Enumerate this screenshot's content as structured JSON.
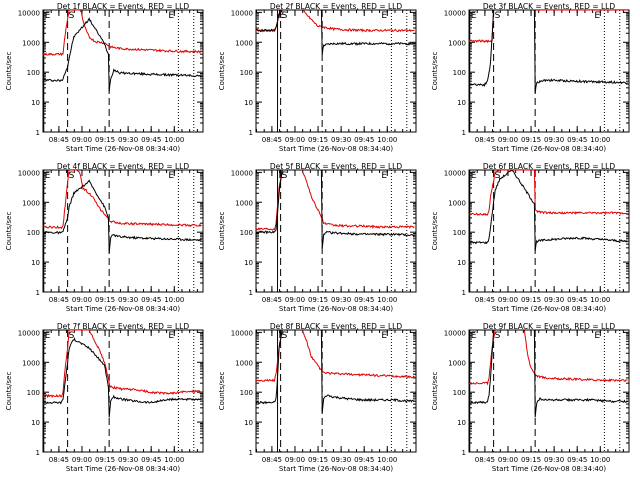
{
  "figure": {
    "ylabel": "Counts/sec",
    "xlabel": "Start Time (26-Nov-08 08:34:40)",
    "x_tick_labels": [
      "08:45",
      "09:00",
      "09:15",
      "09:30",
      "09:45",
      "10:00"
    ],
    "y_tick_labels": [
      "1",
      "10",
      "100",
      "1000",
      "10000"
    ],
    "colors": {
      "events": "#000000",
      "lld": "#e00000",
      "axes": "#000000"
    },
    "interval_labels": {
      "pre": "E",
      "during": "S",
      "post": "E"
    }
  },
  "chart_data": [
    {
      "type": "line",
      "title": "Det 1f BLACK = Events, RED = LLD",
      "x_unit": "minutes after 08:34:40",
      "xlim": [
        0,
        104
      ],
      "ylim": [
        1,
        12000
      ],
      "yscale": "log",
      "markers": {
        "solid": 0.5,
        "dash1": 16,
        "dash2": 43,
        "dot1": 88,
        "dot2": 98
      },
      "interval_labels": [
        "E",
        "S",
        "E"
      ],
      "series": [
        {
          "name": "Events",
          "x": [
            0,
            12,
            13,
            14,
            16,
            17,
            20,
            30,
            40,
            42.5,
            43,
            44,
            46,
            50,
            60,
            70,
            80,
            90,
            100,
            103
          ],
          "y": [
            55,
            52,
            60,
            90,
            150,
            300,
            1500,
            6000,
            900,
            400,
            25,
            60,
            120,
            95,
            90,
            85,
            82,
            80,
            76,
            75
          ]
        },
        {
          "name": "LLD",
          "x": [
            0,
            12,
            13,
            14,
            15,
            16,
            17,
            24,
            25,
            26,
            28,
            30,
            34,
            40,
            43,
            44,
            50,
            60,
            70,
            80,
            90,
            100,
            103
          ],
          "y": [
            400,
            400,
            420,
            1200,
            3000,
            6000,
            12000,
            12000,
            10000,
            5000,
            2500,
            1500,
            1050,
            950,
            750,
            700,
            620,
            580,
            550,
            520,
            500,
            490,
            480
          ]
        }
      ]
    },
    {
      "type": "line",
      "title": "Det 2f BLACK = Events, RED = LLD",
      "x_unit": "minutes after 08:34:40",
      "xlim": [
        0,
        104
      ],
      "ylim": [
        1,
        12000
      ],
      "yscale": "log",
      "markers": {
        "solid": 14,
        "dash1": 16,
        "dash2": 43,
        "dot1": 88,
        "dot2": 98
      },
      "interval_labels": [
        "E",
        "S",
        "E"
      ],
      "series": [
        {
          "name": "Events",
          "x": [
            0,
            12,
            13,
            14,
            15,
            17,
            20,
            30,
            40,
            42.5,
            43,
            44,
            50,
            60,
            70,
            80,
            90,
            100,
            103
          ],
          "y": [
            2500,
            2500,
            3000,
            5000,
            9000,
            12000,
            12000,
            12000,
            12000,
            12000,
            400,
            800,
            900,
            900,
            900,
            900,
            900,
            900,
            900
          ]
        },
        {
          "name": "LLD",
          "x": [
            0,
            12,
            13,
            15,
            17,
            20,
            30,
            40,
            50,
            60,
            70,
            80,
            90,
            100,
            103
          ],
          "y": [
            2500,
            2500,
            3000,
            9000,
            12000,
            12000,
            12000,
            3500,
            2800,
            2600,
            2500,
            2500,
            2500,
            2500,
            2500
          ]
        }
      ]
    },
    {
      "type": "line",
      "title": "Det 3f BLACK = Events, RED = LLD",
      "x_unit": "minutes after 08:34:40",
      "xlim": [
        0,
        104
      ],
      "ylim": [
        1,
        12000
      ],
      "yscale": "log",
      "markers": {
        "solid": 0.5,
        "dash1": 16,
        "dash2": 43,
        "dot1": 88,
        "dot2": 98
      },
      "interval_labels": [
        "E",
        "S",
        "E"
      ],
      "series": [
        {
          "name": "Events",
          "x": [
            0,
            10,
            12,
            13,
            14,
            16,
            17,
            40,
            42.5,
            43,
            44,
            50,
            60,
            70,
            80,
            90,
            100,
            103
          ],
          "y": [
            40,
            38,
            50,
            100,
            200,
            12000,
            12000,
            12000,
            12000,
            20,
            45,
            55,
            52,
            50,
            48,
            47,
            45,
            45
          ]
        },
        {
          "name": "LLD",
          "x": [
            0,
            15,
            16,
            20,
            30,
            40,
            50,
            60,
            70,
            80,
            90,
            100,
            103
          ],
          "y": [
            1100,
            1100,
            12000,
            12000,
            12000,
            12000,
            12000,
            12000,
            12000,
            12000,
            12000,
            12000,
            12000
          ]
        }
      ]
    },
    {
      "type": "line",
      "title": "Det 4f BLACK = Events, RED = LLD",
      "x_unit": "minutes after 08:34:40",
      "xlim": [
        0,
        104
      ],
      "ylim": [
        1,
        12000
      ],
      "yscale": "log",
      "markers": {
        "solid": 0.5,
        "dash1": 16,
        "dash2": 43,
        "dot1": 88,
        "dot2": 98
      },
      "interval_labels": [
        "E",
        "S",
        "E"
      ],
      "series": [
        {
          "name": "Events",
          "x": [
            0,
            12,
            13,
            14,
            16,
            17,
            20,
            30,
            40,
            42.5,
            43,
            44,
            46,
            50,
            60,
            70,
            80,
            90,
            100,
            103
          ],
          "y": [
            100,
            95,
            100,
            150,
            300,
            700,
            2000,
            5000,
            700,
            300,
            20,
            70,
            80,
            70,
            65,
            62,
            60,
            58,
            55,
            55
          ]
        },
        {
          "name": "LLD",
          "x": [
            0,
            12,
            13,
            14,
            15,
            16,
            17,
            22,
            24,
            26,
            28,
            32,
            36,
            40,
            43,
            44,
            50,
            60,
            70,
            80,
            90,
            100,
            103
          ],
          "y": [
            150,
            145,
            160,
            500,
            1500,
            5000,
            12000,
            12000,
            9000,
            3000,
            2500,
            1600,
            700,
            400,
            250,
            230,
            200,
            190,
            185,
            180,
            175,
            170,
            170
          ]
        }
      ]
    },
    {
      "type": "line",
      "title": "Det 5f BLACK = Events, RED = LLD",
      "x_unit": "minutes after 08:34:40",
      "xlim": [
        0,
        104
      ],
      "ylim": [
        1,
        12000
      ],
      "yscale": "log",
      "markers": {
        "solid": 14,
        "dash1": 16,
        "dash2": 43,
        "dot1": 88,
        "dot2": 98
      },
      "interval_labels": [
        "E",
        "S",
        "E"
      ],
      "series": [
        {
          "name": "Events",
          "x": [
            0,
            12,
            13,
            14,
            15,
            17,
            20,
            40,
            42.5,
            43,
            44,
            46,
            50,
            60,
            70,
            80,
            90,
            100,
            103
          ],
          "y": [
            100,
            100,
            120,
            400,
            2000,
            12000,
            12000,
            12000,
            12000,
            30,
            80,
            100,
            95,
            90,
            85,
            85,
            85,
            80,
            80
          ]
        },
        {
          "name": "LLD",
          "x": [
            0,
            12,
            13,
            15,
            17,
            20,
            25,
            30,
            33,
            36,
            40,
            43,
            44,
            50,
            60,
            70,
            80,
            90,
            100,
            103
          ],
          "y": [
            130,
            130,
            200,
            3000,
            12000,
            12000,
            12000,
            12000,
            5000,
            1500,
            600,
            300,
            200,
            170,
            160,
            160,
            150,
            150,
            150,
            150
          ]
        }
      ]
    },
    {
      "type": "line",
      "title": "Det 6f BLACK = Events, RED = LLD",
      "x_unit": "minutes after 08:34:40",
      "xlim": [
        0,
        104
      ],
      "ylim": [
        1,
        12000
      ],
      "yscale": "log",
      "markers": {
        "solid": 0.5,
        "dash1": 16,
        "dash2": 43,
        "dot1": 88,
        "dot2": 98
      },
      "interval_labels": [
        "E",
        "S",
        "E"
      ],
      "series": [
        {
          "name": "Events",
          "x": [
            0,
            12,
            13,
            14,
            16,
            17,
            20,
            28,
            32,
            38,
            42.5,
            43,
            44,
            50,
            60,
            70,
            80,
            90,
            100,
            103
          ],
          "y": [
            45,
            45,
            60,
            150,
            1000,
            2500,
            6000,
            12000,
            6000,
            2000,
            900,
            25,
            50,
            55,
            60,
            65,
            60,
            55,
            50,
            50
          ]
        },
        {
          "name": "LLD",
          "x": [
            0,
            12,
            13,
            14,
            16,
            17,
            20,
            30,
            40,
            42.5,
            43,
            44,
            50,
            60,
            70,
            80,
            90,
            100,
            103
          ],
          "y": [
            400,
            400,
            500,
            1500,
            5000,
            10000,
            12000,
            12000,
            12000,
            12000,
            600,
            500,
            450,
            440,
            440,
            440,
            440,
            440,
            440
          ]
        }
      ]
    },
    {
      "type": "line",
      "title": "Det 7f BLACK = Events, RED = LLD",
      "x_unit": "minutes after 08:34:40",
      "xlim": [
        0,
        104
      ],
      "ylim": [
        1,
        12000
      ],
      "yscale": "log",
      "markers": {
        "solid": 0.5,
        "dash1": 16,
        "dash2": 43,
        "dot1": 88,
        "dot2": 98
      },
      "interval_labels": [
        "E",
        "S",
        "E"
      ],
      "series": [
        {
          "name": "Events",
          "x": [
            0,
            12,
            13,
            14,
            16,
            17,
            20,
            30,
            40,
            42.5,
            43,
            44,
            46,
            50,
            60,
            70,
            80,
            90,
            100,
            103
          ],
          "y": [
            45,
            45,
            60,
            150,
            1000,
            3000,
            6000,
            3000,
            800,
            150,
            15,
            50,
            70,
            60,
            50,
            45,
            55,
            60,
            55,
            55
          ]
        },
        {
          "name": "LLD",
          "x": [
            0,
            12,
            13,
            14,
            16,
            17,
            20,
            30,
            36,
            40,
            42.5,
            43,
            44,
            50,
            60,
            70,
            80,
            90,
            100,
            103
          ],
          "y": [
            75,
            75,
            100,
            400,
            3000,
            12000,
            12000,
            12000,
            3000,
            1000,
            300,
            200,
            150,
            130,
            120,
            100,
            90,
            100,
            110,
            100
          ]
        }
      ]
    },
    {
      "type": "line",
      "title": "Det 8f BLACK = Events, RED = LLD",
      "x_unit": "minutes after 08:34:40",
      "xlim": [
        0,
        104
      ],
      "ylim": [
        1,
        12000
      ],
      "yscale": "log",
      "markers": {
        "solid": 14,
        "dash1": 16,
        "dash2": 43,
        "dot1": 88,
        "dot2": 98
      },
      "interval_labels": [
        "E",
        "S",
        "E"
      ],
      "series": [
        {
          "name": "Events",
          "x": [
            0,
            12,
            13,
            14,
            15,
            17,
            20,
            40,
            42.5,
            43,
            44,
            46,
            50,
            60,
            70,
            80,
            90,
            100,
            103
          ],
          "y": [
            45,
            45,
            60,
            300,
            3000,
            12000,
            12000,
            12000,
            12000,
            20,
            60,
            80,
            70,
            60,
            55,
            55,
            55,
            50,
            50
          ]
        },
        {
          "name": "LLD",
          "x": [
            0,
            12,
            13,
            15,
            17,
            20,
            30,
            33,
            36,
            40,
            43,
            44,
            50,
            60,
            70,
            80,
            90,
            100,
            103
          ],
          "y": [
            250,
            250,
            400,
            3000,
            12000,
            12000,
            12000,
            5000,
            1500,
            800,
            500,
            450,
            420,
            400,
            380,
            360,
            340,
            330,
            320
          ]
        }
      ]
    },
    {
      "type": "line",
      "title": "Det 9f BLACK = Events, RED = LLD",
      "x_unit": "minutes after 08:34:40",
      "xlim": [
        0,
        104
      ],
      "ylim": [
        1,
        12000
      ],
      "yscale": "log",
      "markers": {
        "solid": 0.5,
        "dash1": 16,
        "dash2": 43,
        "dot1": 88,
        "dot2": 98
      },
      "interval_labels": [
        "E",
        "S",
        "E"
      ],
      "series": [
        {
          "name": "Events",
          "x": [
            0,
            12,
            13,
            14,
            16,
            17,
            20,
            40,
            42.5,
            43,
            44,
            46,
            50,
            60,
            70,
            80,
            90,
            100,
            103
          ],
          "y": [
            45,
            45,
            80,
            300,
            12000,
            12000,
            12000,
            12000,
            12000,
            15,
            45,
            60,
            55,
            55,
            55,
            55,
            50,
            50,
            50
          ]
        },
        {
          "name": "LLD",
          "x": [
            0,
            12,
            13,
            15,
            17,
            20,
            30,
            36,
            38,
            40,
            43,
            44,
            50,
            60,
            70,
            80,
            90,
            100,
            103
          ],
          "y": [
            200,
            200,
            300,
            3000,
            12000,
            12000,
            12000,
            12000,
            2000,
            700,
            400,
            350,
            300,
            280,
            270,
            260,
            250,
            250,
            250
          ]
        }
      ]
    }
  ]
}
